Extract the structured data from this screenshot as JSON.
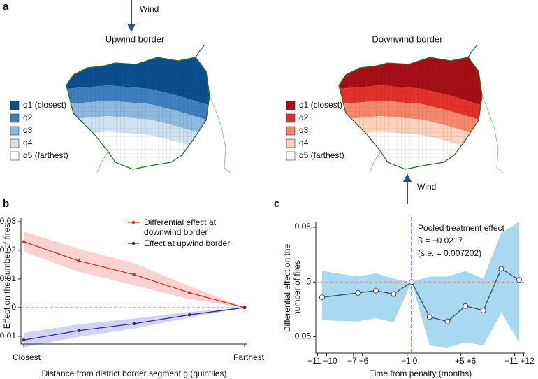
{
  "panel_a": {
    "label": "a",
    "maps": [
      {
        "title": "Upwind border",
        "wind": "Wind",
        "legend": [
          "q1 (closest)",
          "q2",
          "q3",
          "q4",
          "q5 (farthest)"
        ]
      },
      {
        "title": "Downwind border",
        "wind": "Wind",
        "legend": [
          "q1 (closest)",
          "q2",
          "q3",
          "q4",
          "q5 (farthest)"
        ]
      }
    ]
  },
  "chart_data": [
    {
      "type": "line",
      "panel": "b",
      "categories": [
        "Closest",
        null,
        null,
        null,
        "Farthest"
      ],
      "xlabel": "Distance from district border segment g (quintiles)",
      "ylabel": "Effect on the number of fires",
      "ylim": [
        -0.0127,
        0.0312
      ],
      "yticks": [
        0.03,
        0.02,
        0.01,
        0,
        {
          "value": -0.01,
          "label": "−0.01"
        }
      ],
      "reference_line": 0,
      "series": [
        {
          "name": "Differential effect at downwind border",
          "color": "#d7302a",
          "band_color": "#f9d3cf",
          "values": [
            0.023,
            0.0163,
            0.0115,
            0.0052,
            0
          ],
          "lower": [
            0.0195,
            0.0125,
            0.0078,
            0.003,
            0
          ],
          "upper": [
            0.0265,
            0.0205,
            0.0155,
            0.0075,
            0
          ]
        },
        {
          "name": "Effect at upwind border",
          "color": "#2b2b9e",
          "band_color": "#d4d4f2",
          "values": [
            -0.0113,
            -0.008,
            -0.0056,
            -0.0025,
            0
          ],
          "lower": [
            -0.0138,
            -0.0102,
            -0.0073,
            -0.0035,
            0
          ],
          "upper": [
            -0.0088,
            -0.0058,
            -0.0038,
            -0.0015,
            0
          ]
        }
      ]
    },
    {
      "type": "line",
      "panel": "c",
      "x": [
        -10.5,
        -6.5,
        -4.5,
        -2.5,
        -0.5,
        1.5,
        3.5,
        5.5,
        7.5,
        9.5,
        11.5
      ],
      "xlabel": "Time from penalty (months)",
      "ylabel": "Differential effect on the number of fires",
      "xlim": [
        -11.2,
        12.2
      ],
      "xticks": [
        {
          "value": -11,
          "label": "−11"
        },
        {
          "value": -10,
          "label": "−10"
        },
        {
          "value": -7,
          "label": "−7"
        },
        {
          "value": -6,
          "label": "−6"
        },
        {
          "value": -1,
          "label": "−1"
        },
        0,
        {
          "value": 5,
          "label": "+5"
        },
        {
          "value": 6,
          "label": "+6"
        },
        {
          "value": 11,
          "label": "+11"
        },
        {
          "value": 12,
          "label": "+12"
        }
      ],
      "ylim": [
        -0.065,
        0.0545
      ],
      "yticks": [
        0.05,
        0,
        {
          "value": -0.05,
          "label": "−0.05"
        }
      ],
      "reference_line": 0,
      "vline": -0.5,
      "vline_color": "#3b3bd0",
      "annotation": [
        "Pooled treatment effect",
        "β = −0.0217",
        "(s.e. = 0.007202)"
      ],
      "series": [
        {
          "color": "#37505e",
          "band_color": "#a8d9f0",
          "values": [
            -0.014,
            -0.01,
            -0.008,
            -0.011,
            0,
            -0.032,
            -0.036,
            -0.022,
            -0.026,
            0.012,
            0.002
          ],
          "lower": [
            -0.035,
            -0.036,
            -0.033,
            -0.037,
            0,
            -0.058,
            -0.06,
            -0.055,
            -0.058,
            -0.028,
            -0.055
          ],
          "upper": [
            0.01,
            0.005,
            0.008,
            0.003,
            0,
            0.005,
            0.005,
            0.01,
            0.003,
            0.045,
            0.055
          ]
        }
      ]
    }
  ]
}
